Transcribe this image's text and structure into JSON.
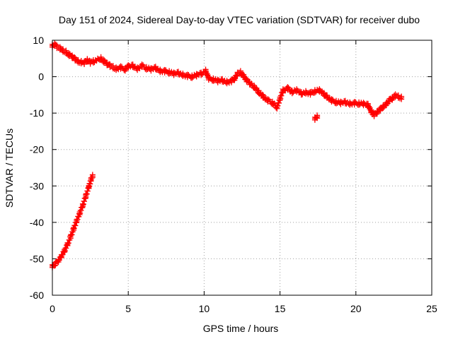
{
  "chart_data": {
    "type": "scatter",
    "title": "Day 151 of 2024, Sidereal Day-to-day VTEC variation (SDTVAR) for receiver dubo",
    "xlabel": "GPS time / hours",
    "ylabel": "SDTVAR / TECUs",
    "xlim": [
      0,
      25
    ],
    "ylim": [
      -60,
      10
    ],
    "xticks": [
      0,
      5,
      10,
      15,
      20,
      25
    ],
    "yticks": [
      10,
      0,
      -10,
      -20,
      -30,
      -40,
      -50,
      -60
    ],
    "grid": true,
    "marker": "+",
    "color": "#ff0000",
    "series": [
      {
        "name": "early descending segment",
        "points": [
          [
            0.0,
            -52.0
          ],
          [
            0.2,
            -51.4
          ],
          [
            0.4,
            -50.5
          ],
          [
            0.6,
            -49.3
          ],
          [
            0.8,
            -47.8
          ],
          [
            1.0,
            -46.0
          ],
          [
            1.2,
            -44.0
          ],
          [
            1.4,
            -41.8
          ],
          [
            1.6,
            -39.6
          ],
          [
            1.8,
            -37.5
          ],
          [
            2.0,
            -35.3
          ],
          [
            2.2,
            -32.8
          ],
          [
            2.4,
            -30.3
          ],
          [
            2.55,
            -28.2
          ],
          [
            2.65,
            -27.3
          ]
        ]
      },
      {
        "name": "main segment",
        "points": [
          [
            0.0,
            8.5
          ],
          [
            0.15,
            8.8
          ],
          [
            0.3,
            8.2
          ],
          [
            0.5,
            7.8
          ],
          [
            0.7,
            7.2
          ],
          [
            0.9,
            6.8
          ],
          [
            1.1,
            6.0
          ],
          [
            1.3,
            5.5
          ],
          [
            1.5,
            4.8
          ],
          [
            1.7,
            4.2
          ],
          [
            1.9,
            4.0
          ],
          [
            2.1,
            3.8
          ],
          [
            2.3,
            4.5
          ],
          [
            2.5,
            3.9
          ],
          [
            2.7,
            4.2
          ],
          [
            3.2,
            5.0
          ],
          [
            3.4,
            4.2
          ],
          [
            3.6,
            3.5
          ],
          [
            3.8,
            3.0
          ],
          [
            4.0,
            2.6
          ],
          [
            4.2,
            2.2
          ],
          [
            4.5,
            2.5
          ],
          [
            4.8,
            2.0
          ],
          [
            5.0,
            2.8
          ],
          [
            5.3,
            3.0
          ],
          [
            5.6,
            2.2
          ],
          [
            5.9,
            3.0
          ],
          [
            6.2,
            2.3
          ],
          [
            6.5,
            2.0
          ],
          [
            6.8,
            2.4
          ],
          [
            7.1,
            1.6
          ],
          [
            7.4,
            1.5
          ],
          [
            7.7,
            1.2
          ],
          [
            8.0,
            0.8
          ],
          [
            8.3,
            1.0
          ],
          [
            8.6,
            0.5
          ],
          [
            8.9,
            0.2
          ],
          [
            9.2,
            0.0
          ],
          [
            9.5,
            0.4
          ],
          [
            9.8,
            0.8
          ],
          [
            10.1,
            1.6
          ],
          [
            10.3,
            -0.5
          ],
          [
            10.6,
            -0.8
          ],
          [
            10.9,
            -1.2
          ],
          [
            11.2,
            -1.0
          ],
          [
            11.5,
            -1.5
          ],
          [
            11.8,
            -1.2
          ],
          [
            12.0,
            -0.6
          ],
          [
            12.2,
            0.8
          ],
          [
            12.4,
            1.2
          ],
          [
            12.6,
            0.2
          ],
          [
            12.8,
            -1.0
          ],
          [
            13.0,
            -1.8
          ],
          [
            13.3,
            -2.8
          ],
          [
            13.6,
            -4.2
          ],
          [
            13.9,
            -5.5
          ],
          [
            14.2,
            -6.5
          ],
          [
            14.5,
            -7.2
          ],
          [
            14.8,
            -8.4
          ],
          [
            15.0,
            -6.0
          ],
          [
            15.2,
            -3.8
          ],
          [
            15.5,
            -3.2
          ],
          [
            15.8,
            -4.2
          ],
          [
            16.1,
            -3.8
          ],
          [
            16.4,
            -4.6
          ],
          [
            16.7,
            -4.3
          ],
          [
            17.0,
            -4.6
          ],
          [
            17.3,
            -4.0
          ],
          [
            17.6,
            -3.8
          ],
          [
            17.9,
            -4.8
          ],
          [
            18.1,
            -5.5
          ],
          [
            18.4,
            -6.5
          ],
          [
            18.7,
            -7.0
          ],
          [
            19.0,
            -7.2
          ],
          [
            19.3,
            -7.0
          ],
          [
            19.6,
            -7.4
          ],
          [
            19.9,
            -7.3
          ],
          [
            20.2,
            -7.4
          ],
          [
            20.5,
            -7.5
          ],
          [
            20.8,
            -7.8
          ],
          [
            21.0,
            -9.5
          ],
          [
            21.2,
            -10.5
          ],
          [
            21.4,
            -9.8
          ],
          [
            21.6,
            -9.0
          ],
          [
            21.8,
            -8.2
          ],
          [
            22.0,
            -7.5
          ],
          [
            22.2,
            -6.5
          ],
          [
            22.4,
            -6.0
          ],
          [
            22.6,
            -5.2
          ],
          [
            22.8,
            -5.5
          ],
          [
            23.0,
            -5.8
          ]
        ]
      },
      {
        "name": "isolated points",
        "points": [
          [
            17.3,
            -11.5
          ],
          [
            17.45,
            -11.0
          ]
        ]
      }
    ]
  }
}
